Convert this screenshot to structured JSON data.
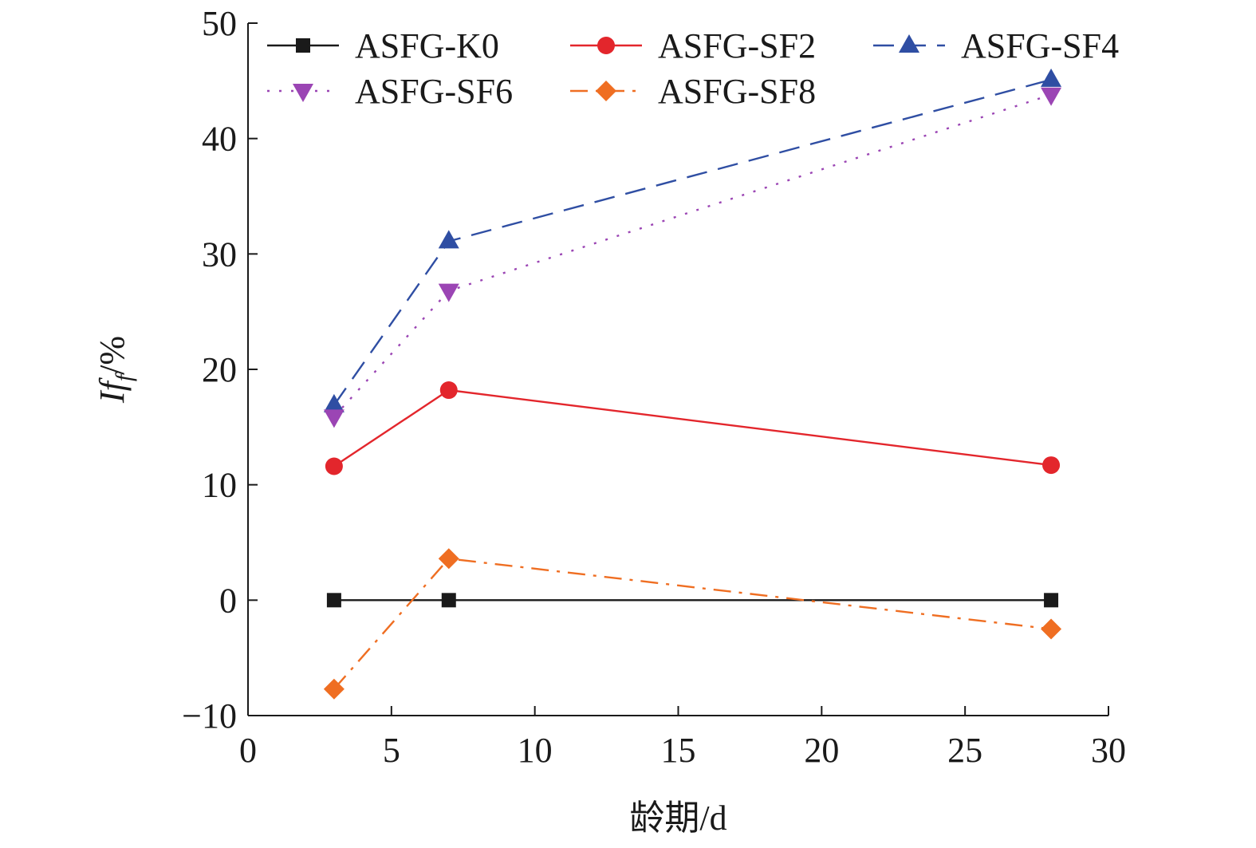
{
  "chart_data": {
    "type": "line",
    "xlabel": "龄期/d",
    "ylabel_main": "If",
    "ylabel_sub": "f",
    "ylabel_unit": "/%",
    "xlim": [
      0,
      30
    ],
    "ylim": [
      -10,
      50
    ],
    "xticks": [
      "0",
      "5",
      "10",
      "15",
      "20",
      "25",
      "30"
    ],
    "yticks": [
      "−10",
      "0",
      "10",
      "20",
      "30",
      "40",
      "50"
    ],
    "grid": false,
    "legend_position": "top",
    "x": [
      3,
      7,
      28
    ],
    "series": [
      {
        "name": "ASFG-K0",
        "values": [
          0,
          0,
          0
        ],
        "color": "#1a1a1a",
        "marker": "square",
        "dash": "solid"
      },
      {
        "name": "ASFG-SF2",
        "values": [
          11.6,
          18.2,
          11.7
        ],
        "color": "#e3262c",
        "marker": "circle",
        "dash": "solid"
      },
      {
        "name": "ASFG-SF4",
        "values": [
          16.9,
          31.1,
          45.1
        ],
        "color": "#2f4ea3",
        "marker": "triangle-up",
        "dash": "dashed"
      },
      {
        "name": "ASFG-SF6",
        "values": [
          15.9,
          26.8,
          43.8
        ],
        "color": "#9b45b4",
        "marker": "triangle-down",
        "dash": "dotted"
      },
      {
        "name": "ASFG-SF8",
        "values": [
          -7.7,
          3.6,
          -2.5
        ],
        "color": "#ef6e22",
        "marker": "diamond",
        "dash": "dashdot"
      }
    ]
  }
}
